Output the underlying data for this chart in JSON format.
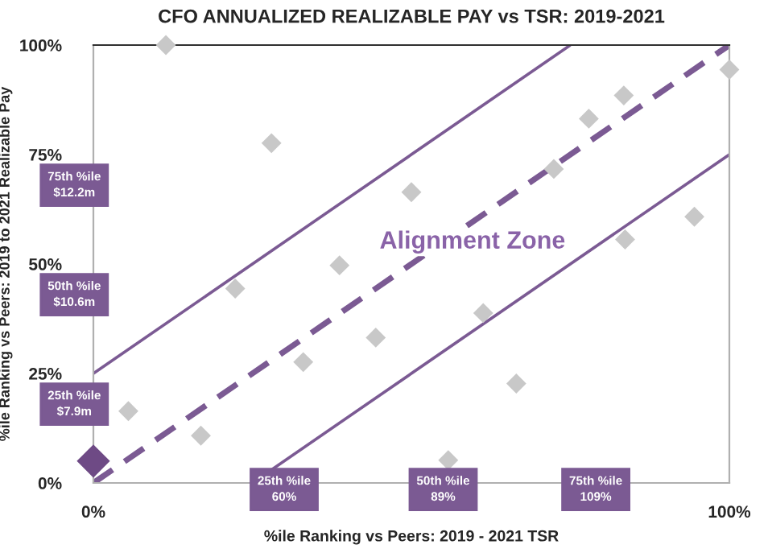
{
  "chart_data": {
    "type": "scatter",
    "title": "CFO ANNUALIZED REALIZABLE PAY vs TSR: 2019-2021",
    "xlabel": "%ile Ranking vs Peers: 2019 - 2021 TSR",
    "ylabel": "%ile Ranking vs Peers: 2019 to 2021 Realizable Pay",
    "xlim": [
      0,
      100
    ],
    "ylim": [
      0,
      100
    ],
    "xticks": [
      {
        "value": 0,
        "label": "0%"
      },
      {
        "value": 100,
        "label": "100%"
      }
    ],
    "yticks": [
      {
        "value": 0,
        "label": "0%"
      },
      {
        "value": 25,
        "label": "25%"
      },
      {
        "value": 50,
        "label": "50%"
      },
      {
        "value": 75,
        "label": "75%"
      },
      {
        "value": 100,
        "label": "100%"
      }
    ],
    "grid": false,
    "legend": false,
    "series": [
      {
        "type": "line",
        "color": "#7b5a93",
        "line_style": "solid",
        "marker": "none",
        "x": [
          0,
          75
        ],
        "values": [
          25,
          100
        ]
      },
      {
        "type": "line",
        "color": "#7b5a93",
        "line_style": "dashed",
        "marker": "none",
        "x": [
          0,
          100
        ],
        "values": [
          0,
          100
        ]
      },
      {
        "type": "line",
        "color": "#7b5a93",
        "line_style": "solid",
        "marker": "none",
        "x": [
          25,
          100
        ],
        "values": [
          0,
          75
        ]
      },
      {
        "color": "#c8c8c8",
        "marker": "diamond",
        "x": [
          11.4,
          28,
          22.3,
          38.7,
          33,
          44.4,
          50,
          5.5,
          16.9,
          55.8,
          61.3,
          66.5,
          72.4,
          77.9,
          83.4,
          83.6,
          94.5,
          100
        ],
        "values": [
          100,
          77.6,
          44.4,
          49.7,
          27.6,
          33.2,
          66.4,
          16.4,
          10.8,
          5.2,
          38.8,
          22.7,
          71.7,
          83.2,
          88.5,
          55.6,
          60.8,
          94.4
        ]
      },
      {
        "color": "#6e4a85",
        "marker": "diamond",
        "x": [
          0
        ],
        "values": [
          5
        ]
      }
    ],
    "annotations": [
      "Alignment Zone",
      "75th %ile\n$12.2m",
      "50th %ile\n$10.6m",
      "25th %ile\n$7.9m",
      "25th %ile\n60%",
      "50th %ile\n89%",
      "75th %ile\n109%"
    ]
  }
}
